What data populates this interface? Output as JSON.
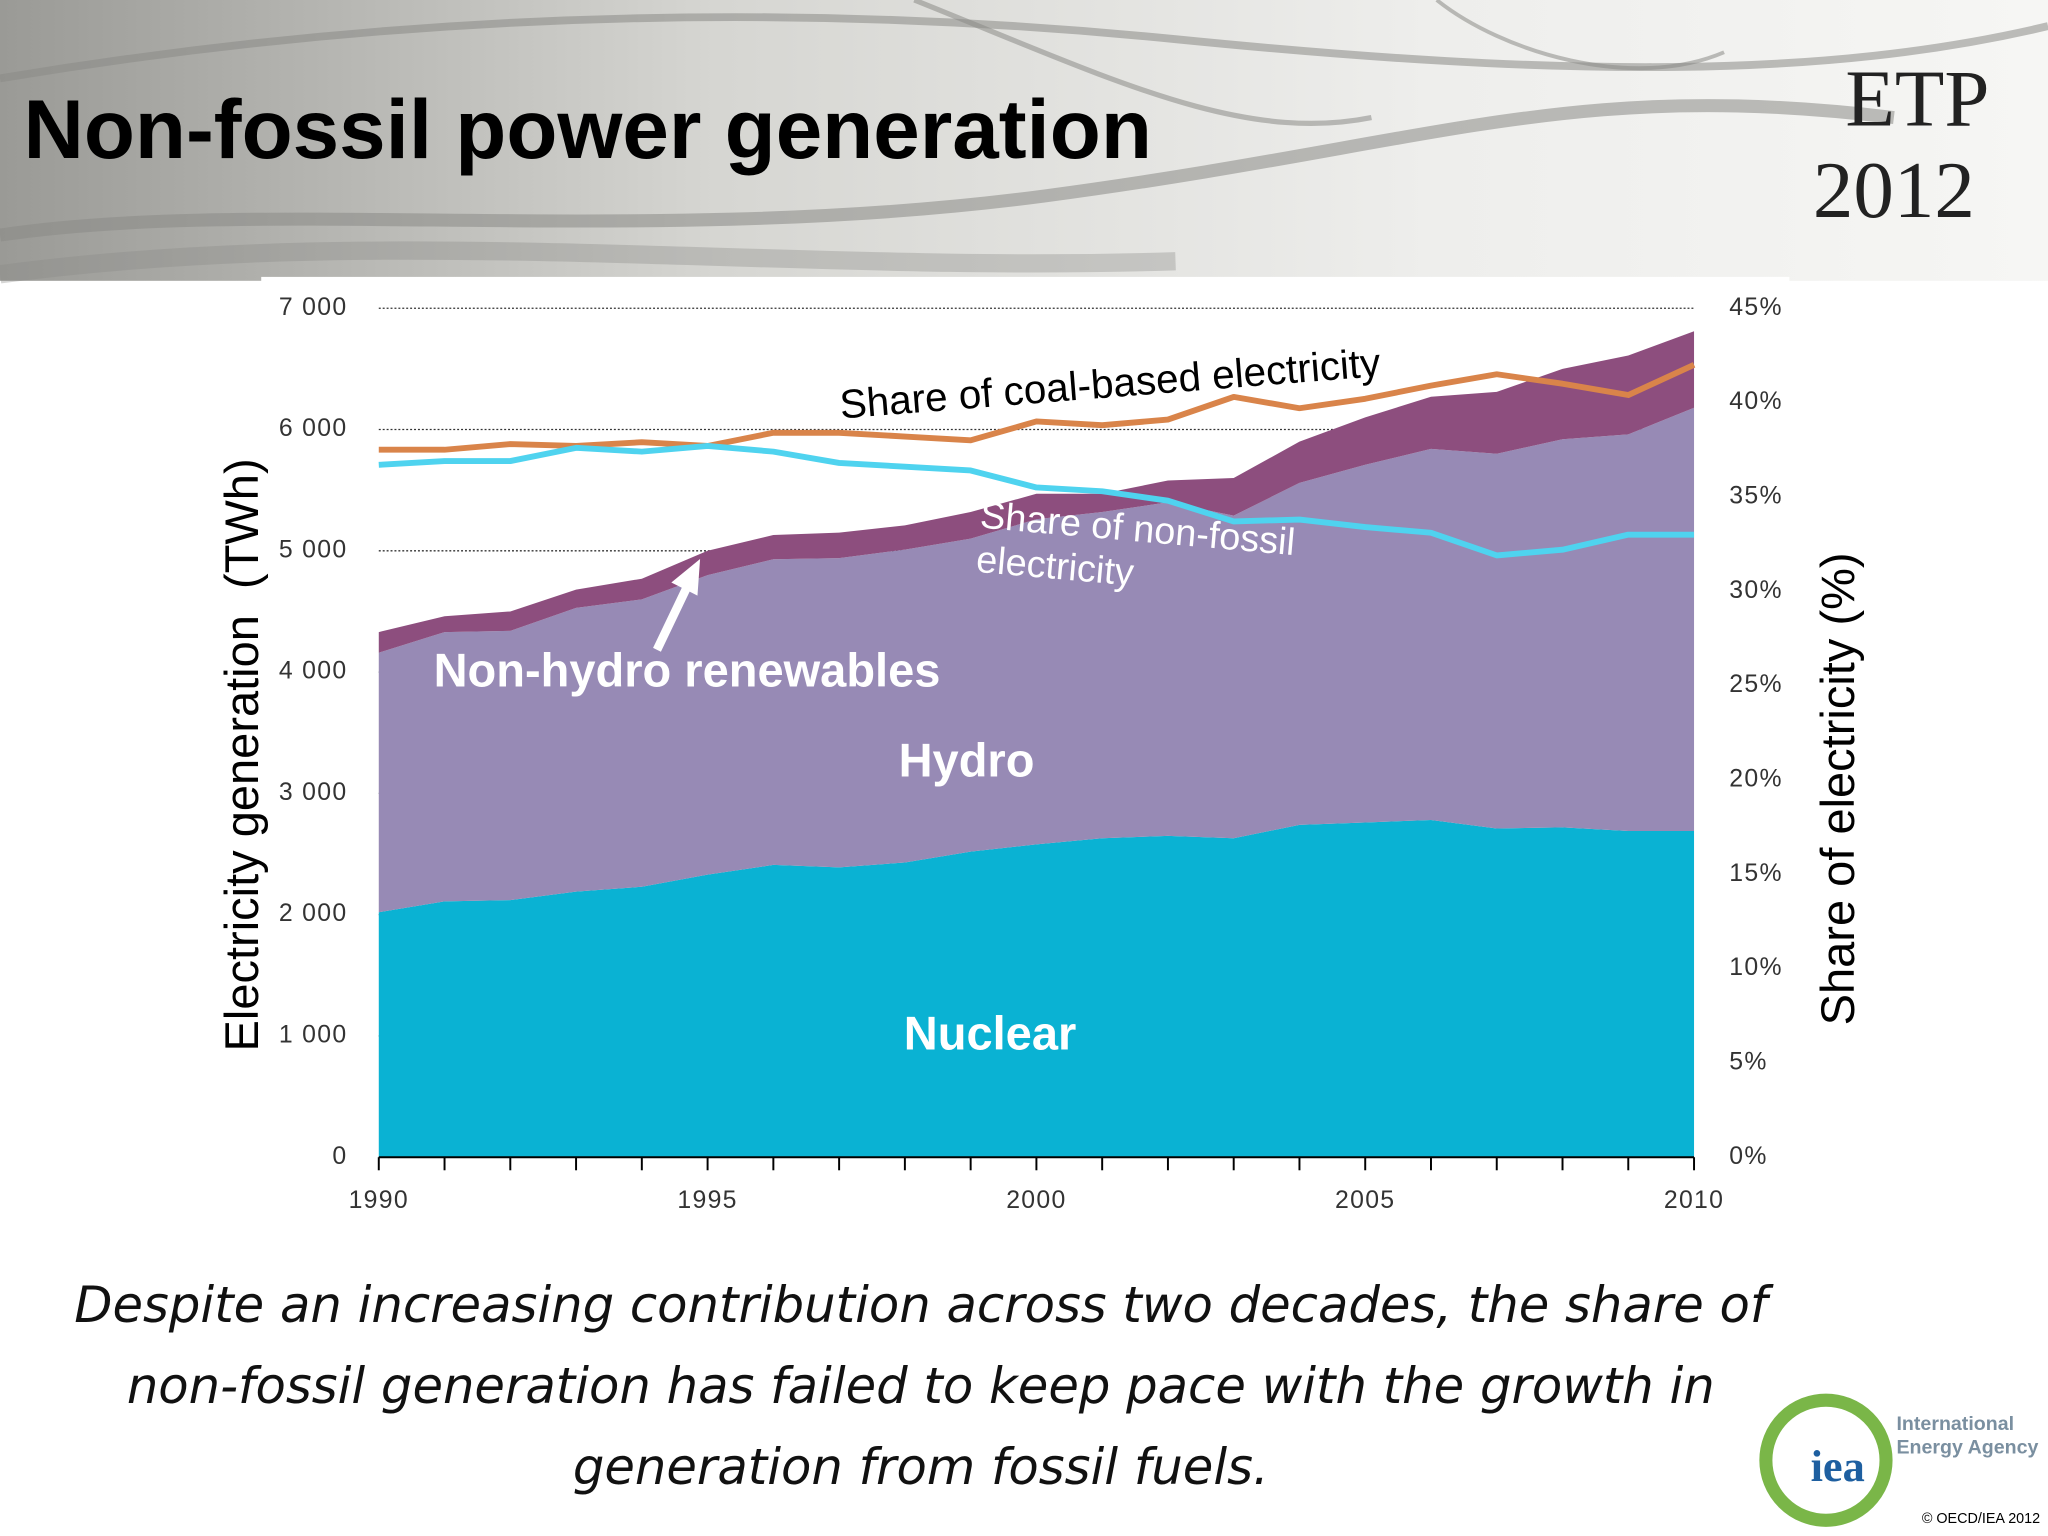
{
  "header": {
    "title": "Non-fossil power generation",
    "logo": [
      "ETP",
      "2012"
    ]
  },
  "chart_data": {
    "type": "stacked_area_line",
    "ylabel": "Electricity generation  (TWh)",
    "y2label": "Share of electricity (%)",
    "x": [
      1990,
      1991,
      1992,
      1993,
      1994,
      1995,
      1996,
      1997,
      1998,
      1999,
      2000,
      2001,
      2002,
      2003,
      2004,
      2005,
      2006,
      2007,
      2008,
      2009,
      2010
    ],
    "xlim": [
      1990,
      2010
    ],
    "xticks": [
      1990,
      1995,
      2000,
      2005,
      2010
    ],
    "ylim": [
      0,
      7000
    ],
    "yticks": [
      0,
      {
        "value": 1000,
        "label": "1 000"
      },
      {
        "value": 2000,
        "label": "2 000"
      },
      {
        "value": 3000,
        "label": "3 000"
      },
      {
        "value": 4000,
        "label": "4 000"
      },
      {
        "value": 5000,
        "label": "5 000"
      },
      {
        "value": 6000,
        "label": "6 000"
      },
      {
        "value": 7000,
        "label": "7 000"
      }
    ],
    "y2lim": [
      0,
      45
    ],
    "y2ticks": [
      {
        "value": 0,
        "label": "0%"
      },
      {
        "value": 5,
        "label": "5%"
      },
      {
        "value": 10,
        "label": "10%"
      },
      {
        "value": 15,
        "label": "15%"
      },
      {
        "value": 20,
        "label": "20%"
      },
      {
        "value": 25,
        "label": "25%"
      },
      {
        "value": 30,
        "label": "30%"
      },
      {
        "value": 35,
        "label": "35%"
      },
      {
        "value": 40,
        "label": "40%"
      },
      {
        "value": 45,
        "label": "45%"
      }
    ],
    "grid": true,
    "series": [
      {
        "name": "Nuclear",
        "color": "#0ab2d3",
        "kind": "area",
        "values": [
          2020,
          2110,
          2120,
          2190,
          2230,
          2330,
          2410,
          2390,
          2430,
          2520,
          2580,
          2630,
          2650,
          2630,
          2740,
          2760,
          2780,
          2710,
          2720,
          2690,
          2690
        ]
      },
      {
        "name": "Hydro",
        "color": "#978ab5",
        "kind": "area",
        "values": [
          2140,
          2220,
          2220,
          2340,
          2370,
          2470,
          2520,
          2550,
          2580,
          2580,
          2680,
          2690,
          2750,
          2660,
          2820,
          2950,
          3060,
          3090,
          3200,
          3270,
          3490
        ]
      },
      {
        "name": "Non-hydro renewables",
        "color": "#8d4e7e",
        "kind": "area",
        "values": [
          170,
          130,
          160,
          150,
          170,
          200,
          200,
          210,
          200,
          220,
          210,
          150,
          180,
          310,
          340,
          390,
          430,
          510,
          580,
          650,
          630
        ]
      },
      {
        "name": "Share of coal-based electricity",
        "color": "#d9844a",
        "kind": "line",
        "axis": "y2",
        "values": [
          37.5,
          37.5,
          37.8,
          37.7,
          37.9,
          37.7,
          38.4,
          38.4,
          38.2,
          38.0,
          39.0,
          38.8,
          39.1,
          40.3,
          39.7,
          40.2,
          40.9,
          41.5,
          41.0,
          40.4,
          42.0
        ]
      },
      {
        "name": "Share of non-fossil electricity",
        "color": "#4fd3ef",
        "kind": "line",
        "axis": "y2",
        "values": [
          36.7,
          36.9,
          36.9,
          37.6,
          37.4,
          37.7,
          37.4,
          36.8,
          36.6,
          36.4,
          35.5,
          35.3,
          34.8,
          33.7,
          33.8,
          33.4,
          33.1,
          31.9,
          32.2,
          33.0,
          33.0
        ]
      }
    ]
  },
  "caption": "Despite an increasing contribution across two decades, the share of non-fossil generation has failed to keep pace with the growth in generation from fossil fuels.",
  "footer": {
    "agency_short": "iea",
    "agency": "International Energy Agency",
    "copyright": "© OECD/IEA 2012"
  }
}
